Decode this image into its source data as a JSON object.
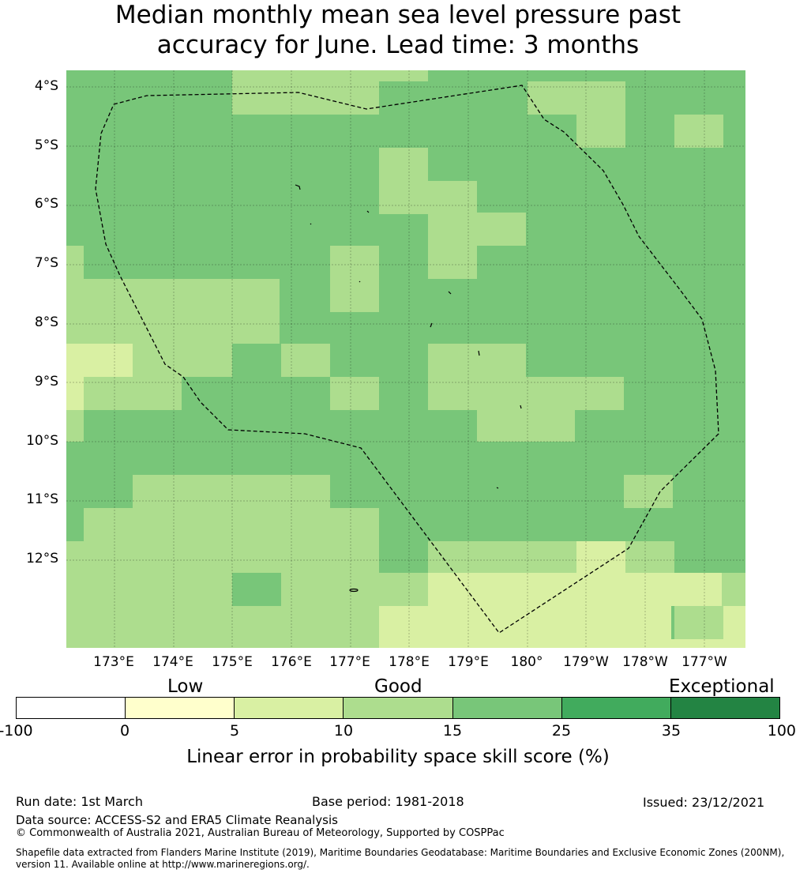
{
  "title": {
    "line1": "Median monthly mean sea level pressure past",
    "line2": "accuracy for June. Lead time: 3 months"
  },
  "map": {
    "lat_labels": [
      "4°S",
      "5°S",
      "6°S",
      "7°S",
      "8°S",
      "9°S",
      "10°S",
      "11°S",
      "12°S"
    ],
    "lon_labels": [
      "173°E",
      "174°E",
      "175°E",
      "176°E",
      "177°E",
      "178°E",
      "179°E",
      "180°",
      "179°W",
      "178°W",
      "177°W"
    ],
    "legend_colors": [
      "#ffffff",
      "#ffffcc",
      "#d9f0a3",
      "#addd8e",
      "#78c679",
      "#41ab5d",
      "#238443"
    ],
    "eez_boundary": "dashed-black-line",
    "islands": "small-black-outlines"
  },
  "colorbar": {
    "categories": [
      "Low",
      "Good",
      "Exceptional"
    ],
    "ticks": [
      "-100",
      "0",
      "5",
      "10",
      "15",
      "25",
      "35",
      "100"
    ],
    "label": "Linear error in probability space skill score (%)"
  },
  "footer": {
    "run_date": "Run date: 1st March",
    "base_period": "Base period: 1981-2018",
    "issued": "Issued: 23/12/2021",
    "data_source": "Data source: ACCESS-S2 and ERA5 Climate Reanalysis",
    "copyright": "© Commonwealth of Australia 2021, Australian Bureau of Meteorology, Supported by COSPPac",
    "shapefile_1": "Shapefile data extracted from Flanders Marine Institute (2019), Maritime Boundaries Geodatabase: Maritime Boundaries and Exclusive Economic Zones (200NM),",
    "shapefile_2": "version 11. Available online at http://www.marineregions.org/."
  }
}
